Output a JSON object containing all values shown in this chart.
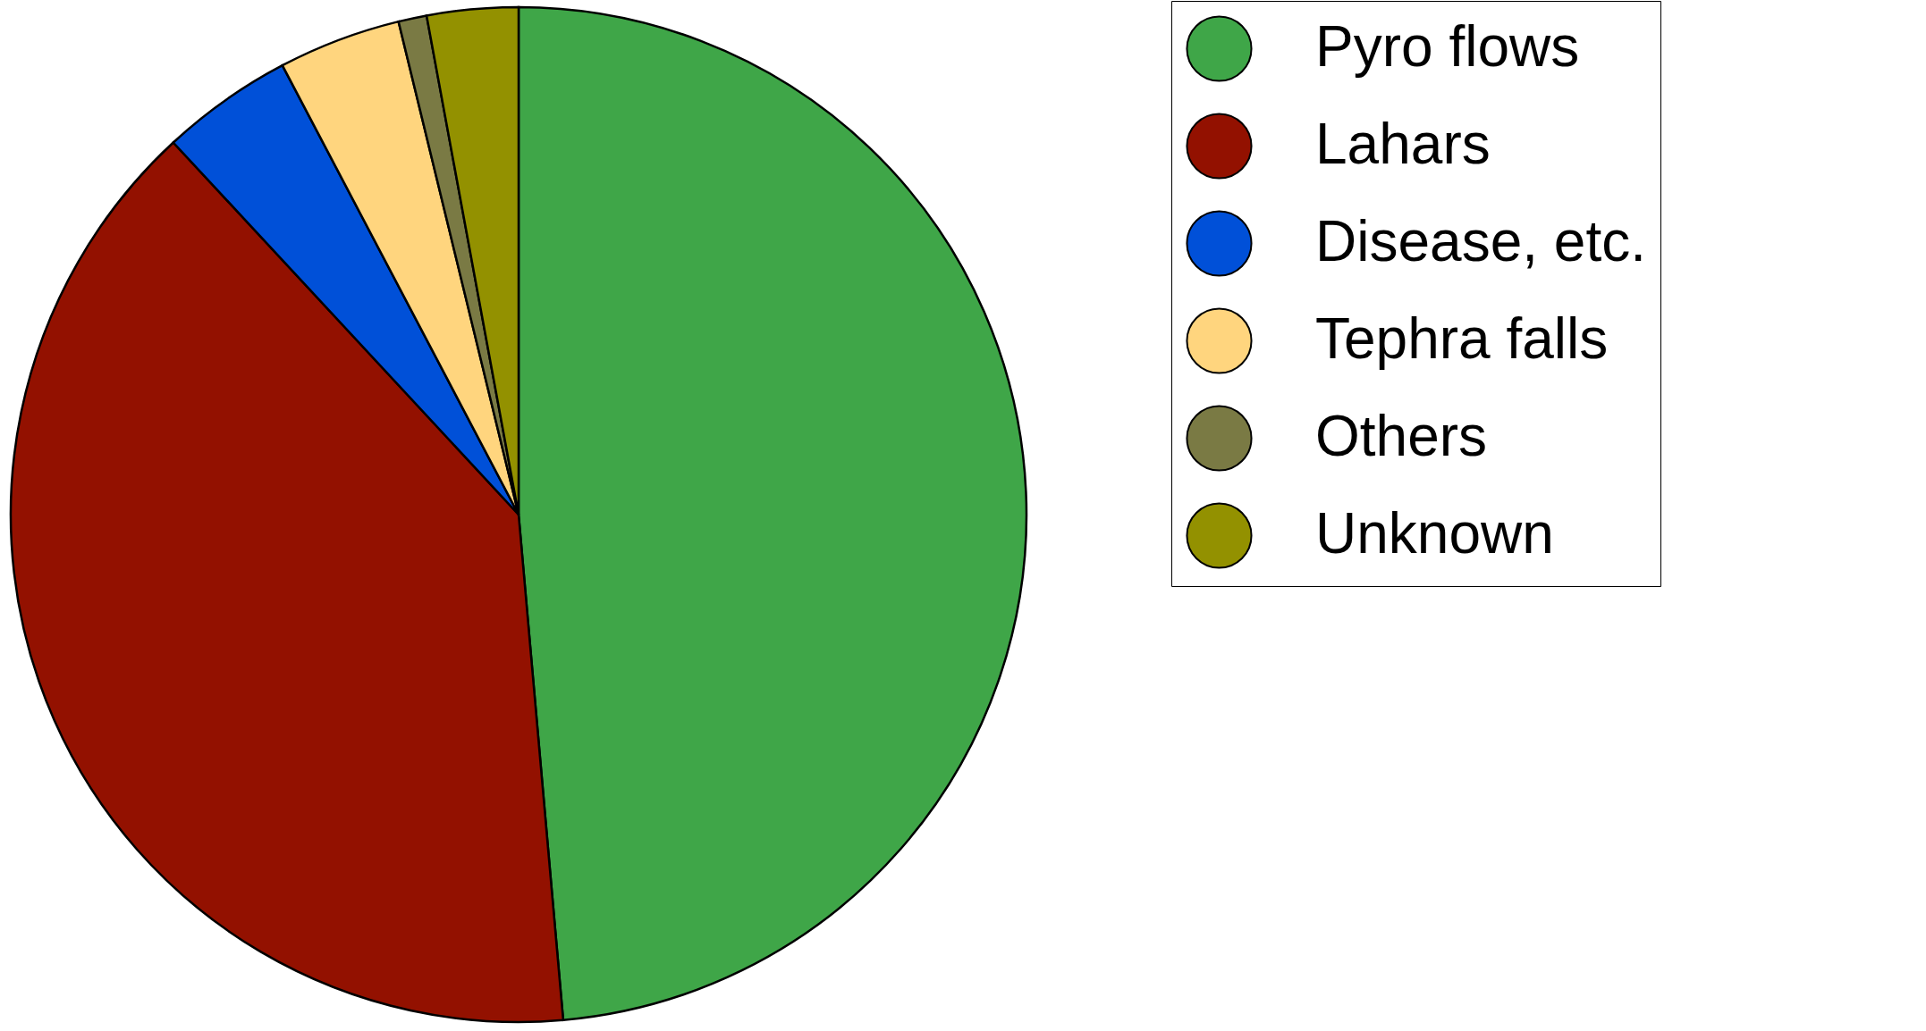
{
  "chart_data": {
    "type": "pie",
    "categories": [
      "Pyro flows",
      "Lahars",
      "Disease, etc.",
      "Tephra falls",
      "Others",
      "Unknown"
    ],
    "values": [
      48.6,
      39.5,
      4.2,
      3.9,
      0.9,
      2.9
    ],
    "colors": [
      "#3fa648",
      "#931100",
      "#0050d8",
      "#ffd57e",
      "#7a7a44",
      "#939100"
    ],
    "legend": "right"
  }
}
